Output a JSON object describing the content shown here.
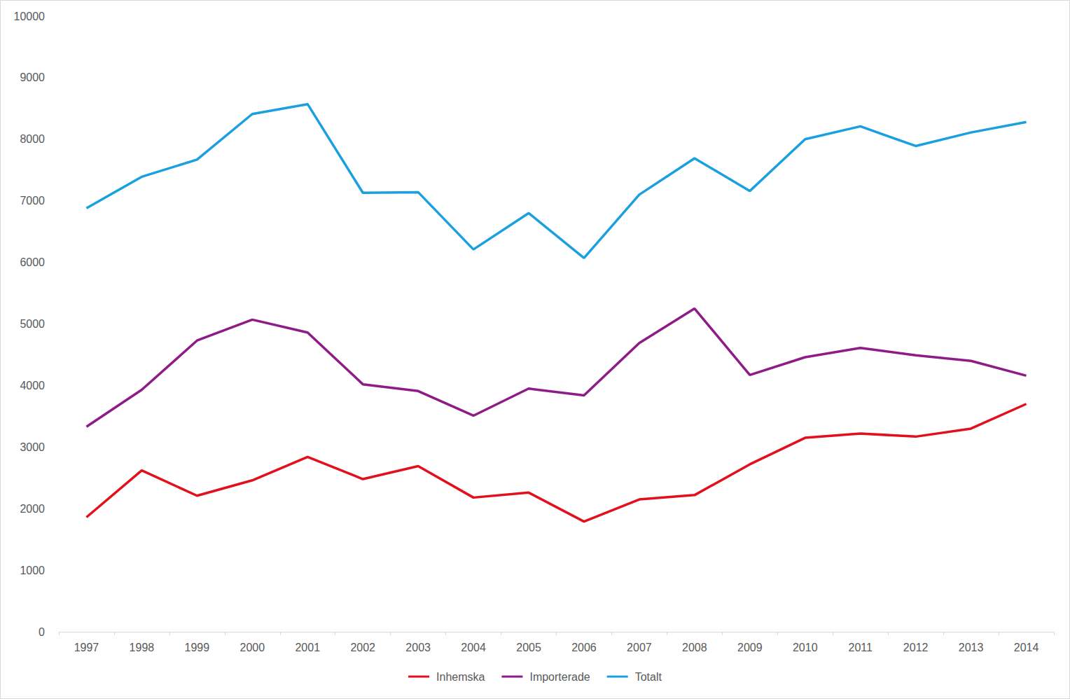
{
  "chart_data": {
    "type": "line",
    "categories": [
      "1997",
      "1998",
      "1999",
      "2000",
      "2001",
      "2002",
      "2003",
      "2004",
      "2005",
      "2006",
      "2007",
      "2008",
      "2009",
      "2010",
      "2011",
      "2012",
      "2013",
      "2014"
    ],
    "series": [
      {
        "name": "Inhemska",
        "color": "#e2101c",
        "values": [
          1860,
          2620,
          2210,
          2460,
          2840,
          2480,
          2690,
          2180,
          2260,
          1790,
          2150,
          2220,
          2720,
          3150,
          3220,
          3170,
          3300,
          3700
        ]
      },
      {
        "name": "Importerade",
        "color": "#8e1b86",
        "values": [
          3330,
          3930,
          4730,
          5070,
          4860,
          4020,
          3910,
          3510,
          3950,
          3840,
          4690,
          5250,
          4170,
          4460,
          4610,
          4490,
          4400,
          4160
        ]
      },
      {
        "name": "Totalt",
        "color": "#1aa0e0",
        "values": [
          6880,
          7390,
          7670,
          8410,
          8570,
          7130,
          7140,
          6210,
          6800,
          6070,
          7100,
          7690,
          7160,
          8000,
          8210,
          7890,
          8110,
          8280
        ]
      }
    ],
    "ylim": [
      0,
      10000
    ],
    "yticks": [
      0,
      1000,
      2000,
      3000,
      4000,
      5000,
      6000,
      7000,
      8000,
      9000,
      10000
    ],
    "grid": false,
    "legend": "bottom"
  }
}
